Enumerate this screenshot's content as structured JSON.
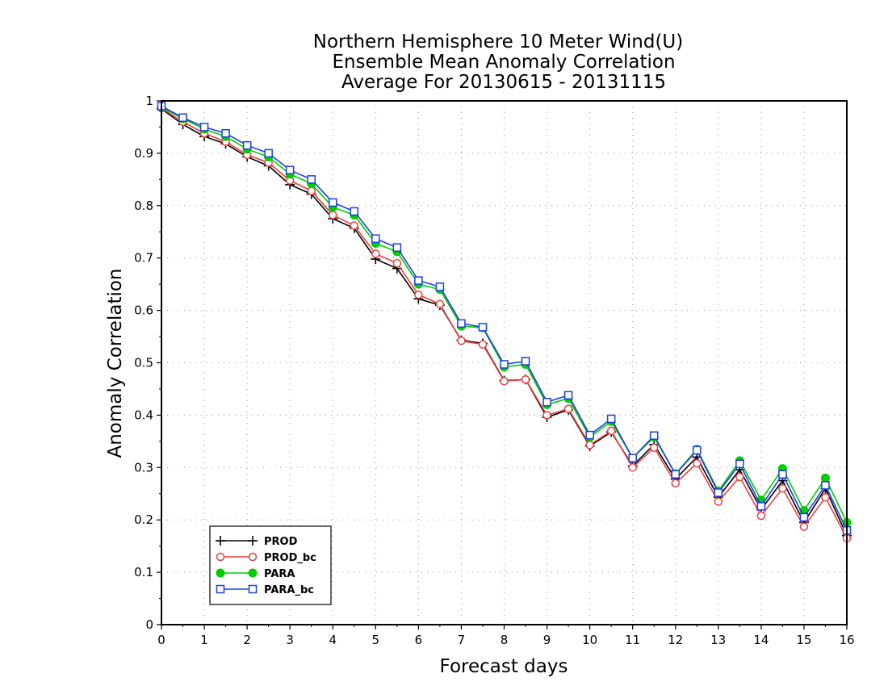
{
  "chart_data": {
    "type": "line",
    "title_lines": [
      "Northern Hemisphere 10 Meter Wind(U)",
      "Ensemble Mean Anomaly Correlation",
      "Average For 20130615 - 20131115"
    ],
    "xlabel": "Forecast days",
    "ylabel": "Anomaly Correlation",
    "xlim": [
      0,
      16
    ],
    "ylim": [
      0,
      1
    ],
    "x_ticks": [
      "0",
      "1",
      "2",
      "3",
      "4",
      "5",
      "6",
      "7",
      "8",
      "9",
      "10",
      "11",
      "12",
      "13",
      "14",
      "15",
      "16"
    ],
    "y_ticks": [
      "0",
      "0.1",
      "0.2",
      "0.3",
      "0.4",
      "0.5",
      "0.6",
      "0.7",
      "0.8",
      "0.9",
      "1"
    ],
    "grid": true,
    "legend_position": "bottom-left",
    "x": [
      0,
      0.5,
      1,
      1.5,
      2,
      2.5,
      3,
      3.5,
      4,
      4.5,
      5,
      5.5,
      6,
      6.5,
      7,
      7.5,
      8,
      8.5,
      9,
      9.5,
      10,
      10.5,
      11,
      11.5,
      12,
      12.5,
      13,
      13.5,
      14,
      14.5,
      15,
      15.5,
      16
    ],
    "series": [
      {
        "name": "PROD",
        "color": "#000000",
        "marker": "plus",
        "values": [
          0.985,
          0.955,
          0.932,
          0.918,
          0.893,
          0.876,
          0.84,
          0.822,
          0.775,
          0.757,
          0.698,
          0.68,
          0.622,
          0.61,
          0.543,
          0.537,
          0.466,
          0.468,
          0.396,
          0.41,
          0.341,
          0.368,
          0.303,
          0.344,
          0.278,
          0.32,
          0.243,
          0.296,
          0.22,
          0.275,
          0.195,
          0.26,
          0.17
        ]
      },
      {
        "name": "PROD_bc",
        "color": "#e84040",
        "marker": "open-circle",
        "values": [
          0.986,
          0.96,
          0.938,
          0.922,
          0.897,
          0.882,
          0.848,
          0.828,
          0.782,
          0.762,
          0.708,
          0.69,
          0.63,
          0.612,
          0.542,
          0.535,
          0.465,
          0.468,
          0.4,
          0.412,
          0.343,
          0.37,
          0.3,
          0.338,
          0.27,
          0.308,
          0.235,
          0.282,
          0.208,
          0.26,
          0.187,
          0.243,
          0.165
        ]
      },
      {
        "name": "PARA",
        "color": "#00cc00",
        "marker": "filled-circle",
        "values": [
          0.988,
          0.966,
          0.946,
          0.932,
          0.908,
          0.893,
          0.86,
          0.842,
          0.797,
          0.782,
          0.728,
          0.712,
          0.65,
          0.64,
          0.57,
          0.567,
          0.492,
          0.497,
          0.42,
          0.432,
          0.358,
          0.388,
          0.318,
          0.358,
          0.288,
          0.335,
          0.255,
          0.313,
          0.238,
          0.298,
          0.218,
          0.28,
          0.195
        ]
      },
      {
        "name": "PARA_bc",
        "color": "#1f3fdf",
        "marker": "open-square",
        "values": [
          0.99,
          0.968,
          0.95,
          0.938,
          0.915,
          0.9,
          0.868,
          0.85,
          0.806,
          0.789,
          0.737,
          0.72,
          0.657,
          0.645,
          0.575,
          0.568,
          0.497,
          0.503,
          0.425,
          0.438,
          0.362,
          0.393,
          0.318,
          0.361,
          0.287,
          0.333,
          0.252,
          0.307,
          0.226,
          0.287,
          0.205,
          0.266,
          0.18
        ]
      }
    ]
  }
}
